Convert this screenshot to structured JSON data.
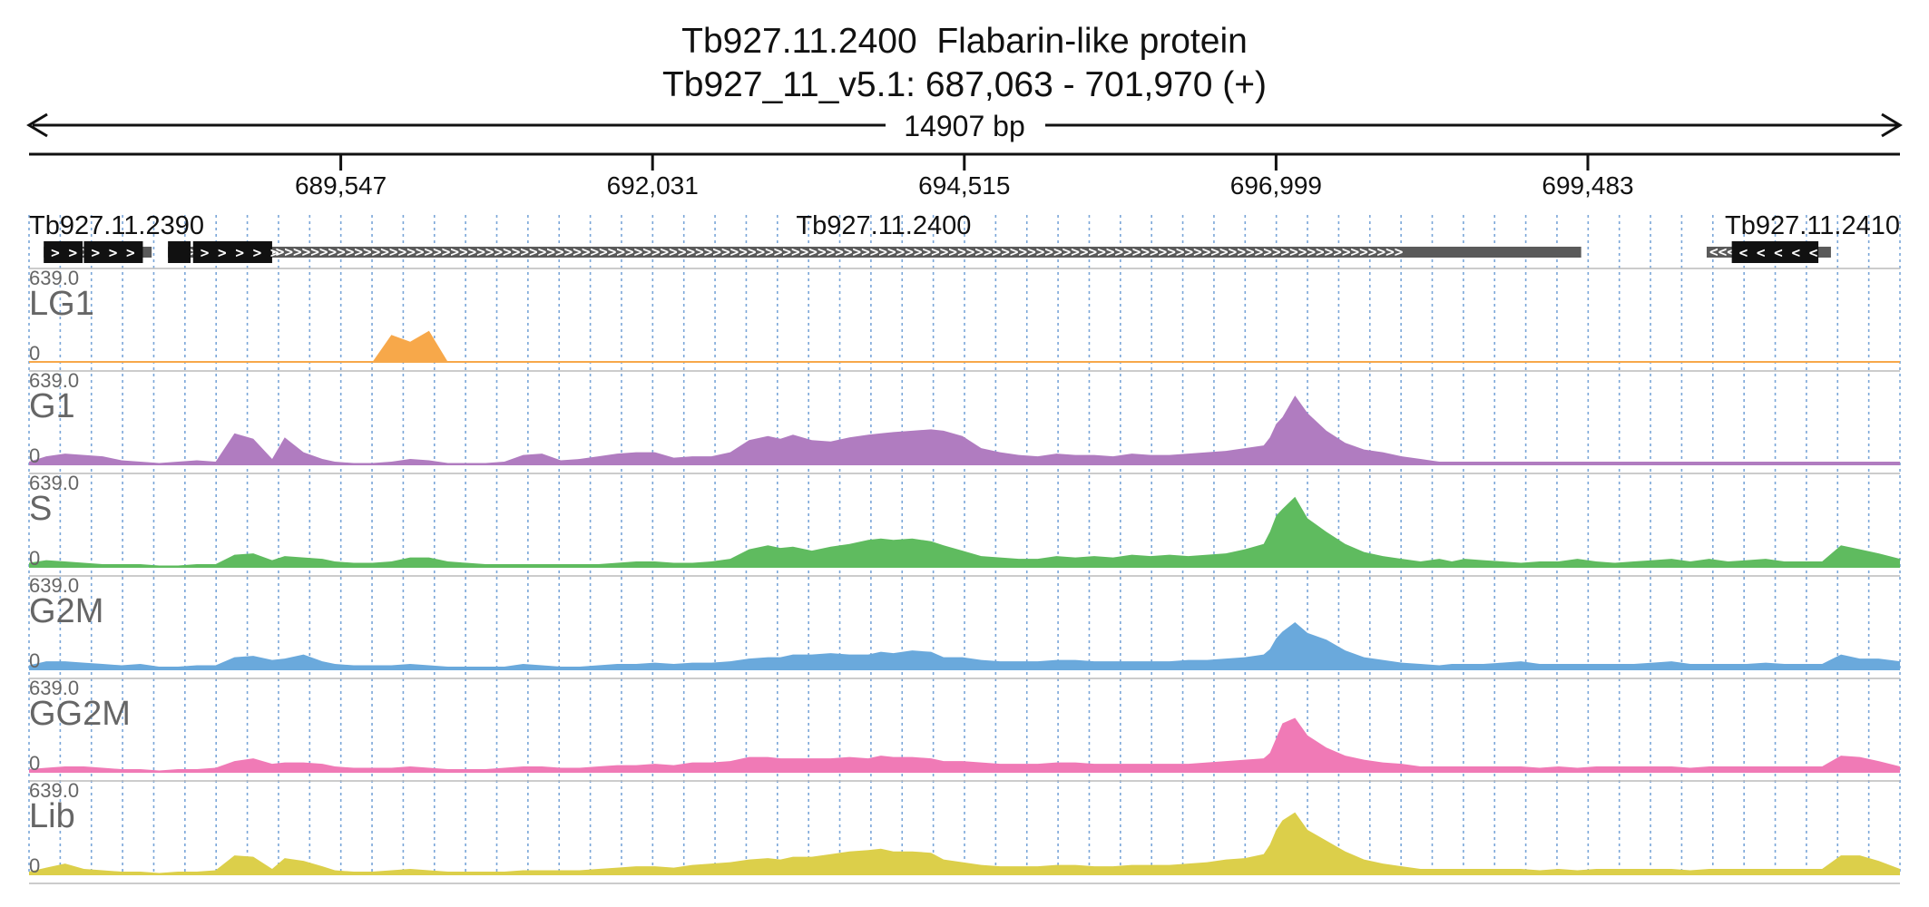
{
  "header": {
    "title_line1": "Tb927.11.2400  Flabarin-like protein",
    "title_line2": "Tb927_11_v5.1: 687,063 - 701,970 (+)",
    "span_label": "14907 bp"
  },
  "colors": {
    "LG1": "#f7a84a",
    "G1": "#b07cc0",
    "S": "#5fbb5f",
    "G2M": "#6aa9dc",
    "GG2M": "#f07ab6",
    "Lib": "#dccf4a",
    "gridline": "#7aa6d8",
    "gene_body": "#5a5a5a",
    "cds": "#111111"
  },
  "chart_data": {
    "type": "area",
    "region": {
      "chromosome": "Tb927_11_v5.1",
      "start": 687063,
      "end": 701970,
      "strand": "+"
    },
    "xlim": [
      687063,
      701970
    ],
    "ticks": [
      {
        "pos": 689547,
        "label": "689,547"
      },
      {
        "pos": 692031,
        "label": "692,031"
      },
      {
        "pos": 694515,
        "label": "694,515"
      },
      {
        "pos": 696999,
        "label": "696,999"
      },
      {
        "pos": 699483,
        "label": "699,483"
      }
    ],
    "genes": [
      {
        "name": "Tb927.11.2390",
        "strand": "+",
        "body": [
          687180,
          688040
        ],
        "exons": [
          [
            687180,
            687490
          ],
          [
            687500,
            687970
          ]
        ]
      },
      {
        "name": "Tb927.11.2400",
        "strand": "+",
        "body": [
          688170,
          699430
        ],
        "exons": [
          [
            688170,
            688350
          ],
          [
            688370,
            689000
          ]
        ]
      },
      {
        "name": "Tb927.11.2410",
        "strand": "-",
        "body": [
          700430,
          701420
        ],
        "exons": [
          [
            700630,
            701320
          ]
        ]
      }
    ],
    "ylim": [
      0,
      639.0
    ],
    "scale_label": "639.0",
    "zero_label": "0",
    "x_positions": [
      687063,
      687200,
      687350,
      687500,
      687650,
      687800,
      687950,
      688100,
      688250,
      688400,
      688550,
      688700,
      688850,
      689000,
      689100,
      689250,
      689400,
      689500,
      689650,
      689800,
      689950,
      690100,
      690250,
      690400,
      690550,
      690700,
      690850,
      691000,
      691150,
      691300,
      691450,
      691600,
      691750,
      691900,
      692050,
      692200,
      692350,
      692500,
      692650,
      692800,
      692950,
      693050,
      693150,
      693300,
      693450,
      693600,
      693750,
      693850,
      693950,
      694100,
      694250,
      694350,
      694500,
      694650,
      694800,
      694950,
      695100,
      695250,
      695400,
      695550,
      695700,
      695850,
      696000,
      696150,
      696300,
      696450,
      696600,
      696750,
      696900,
      696950,
      697000,
      697050,
      697150,
      697250,
      697400,
      697550,
      697700,
      697850,
      698000,
      698150,
      698300,
      698400,
      698500,
      698650,
      698800,
      698950,
      699100,
      699250,
      699400,
      699550,
      699700,
      699850,
      700000,
      700150,
      700300,
      700450,
      700600,
      700750,
      700900,
      701050,
      701200,
      701350,
      701500,
      701650,
      701800,
      701970
    ],
    "series": [
      {
        "name": "LG1",
        "values": [
          0,
          0,
          0,
          0,
          0,
          0,
          0,
          0,
          0,
          0,
          0,
          0,
          0,
          0,
          0,
          0,
          0,
          0,
          0,
          0,
          200,
          150,
          230,
          0,
          0,
          0,
          0,
          0,
          0,
          0,
          0,
          0,
          0,
          0,
          0,
          0,
          0,
          0,
          0,
          0,
          0,
          0,
          0,
          0,
          0,
          0,
          0,
          0,
          0,
          0,
          0,
          0,
          0,
          0,
          0,
          0,
          0,
          0,
          0,
          0,
          0,
          0,
          0,
          0,
          0,
          0,
          0,
          0,
          0,
          0,
          0,
          0,
          0,
          0,
          0,
          0,
          0,
          0,
          0,
          0,
          0,
          0,
          0,
          0,
          0,
          0,
          0,
          0,
          0,
          0,
          0,
          0,
          0,
          0,
          0,
          0,
          0,
          0,
          0,
          0,
          0,
          0,
          0,
          0,
          0,
          0
        ]
      },
      {
        "name": "G1",
        "values": [
          20,
          60,
          80,
          70,
          60,
          30,
          20,
          10,
          20,
          30,
          20,
          230,
          190,
          40,
          200,
          90,
          40,
          20,
          10,
          10,
          20,
          40,
          30,
          10,
          10,
          10,
          20,
          70,
          80,
          30,
          40,
          60,
          80,
          90,
          90,
          50,
          60,
          60,
          90,
          180,
          210,
          190,
          220,
          180,
          170,
          200,
          220,
          230,
          240,
          250,
          260,
          250,
          210,
          120,
          90,
          70,
          60,
          80,
          70,
          70,
          60,
          80,
          70,
          70,
          80,
          90,
          100,
          120,
          140,
          200,
          300,
          350,
          510,
          380,
          250,
          160,
          110,
          90,
          60,
          40,
          20,
          20,
          20,
          20,
          20,
          20,
          20,
          20,
          20,
          20,
          20,
          20,
          20,
          20,
          20,
          20,
          20,
          20,
          20,
          20,
          20,
          20,
          20,
          20,
          20,
          20
        ]
      },
      {
        "name": "S",
        "values": [
          30,
          50,
          40,
          30,
          20,
          20,
          20,
          10,
          10,
          20,
          20,
          90,
          100,
          50,
          80,
          70,
          60,
          40,
          30,
          30,
          40,
          70,
          70,
          40,
          30,
          20,
          20,
          20,
          20,
          20,
          20,
          20,
          30,
          40,
          40,
          30,
          30,
          40,
          60,
          130,
          160,
          140,
          150,
          120,
          150,
          170,
          200,
          210,
          200,
          210,
          190,
          160,
          120,
          80,
          70,
          60,
          60,
          80,
          70,
          80,
          70,
          90,
          80,
          90,
          80,
          90,
          100,
          130,
          170,
          260,
          380,
          430,
          520,
          360,
          260,
          170,
          110,
          80,
          60,
          40,
          60,
          40,
          60,
          50,
          40,
          30,
          40,
          40,
          60,
          40,
          30,
          40,
          50,
          60,
          40,
          60,
          40,
          50,
          60,
          40,
          40,
          40,
          160,
          130,
          100,
          60
        ]
      },
      {
        "name": "G2M",
        "values": [
          30,
          60,
          60,
          50,
          40,
          30,
          40,
          20,
          20,
          30,
          30,
          90,
          100,
          70,
          80,
          110,
          60,
          40,
          30,
          30,
          30,
          40,
          30,
          20,
          20,
          20,
          20,
          40,
          30,
          20,
          20,
          30,
          40,
          40,
          50,
          40,
          50,
          50,
          60,
          80,
          90,
          90,
          110,
          110,
          120,
          110,
          110,
          130,
          120,
          140,
          130,
          90,
          90,
          70,
          60,
          60,
          60,
          70,
          70,
          60,
          60,
          60,
          60,
          60,
          70,
          70,
          80,
          90,
          110,
          150,
          230,
          280,
          350,
          270,
          220,
          140,
          90,
          70,
          50,
          40,
          30,
          40,
          40,
          40,
          50,
          60,
          40,
          40,
          40,
          40,
          40,
          40,
          50,
          60,
          40,
          40,
          40,
          40,
          50,
          40,
          40,
          40,
          110,
          80,
          80,
          60
        ]
      },
      {
        "name": "GG2M",
        "values": [
          20,
          30,
          40,
          40,
          30,
          20,
          20,
          10,
          20,
          20,
          30,
          80,
          100,
          60,
          70,
          70,
          60,
          40,
          30,
          30,
          30,
          40,
          30,
          20,
          20,
          20,
          30,
          40,
          40,
          30,
          30,
          40,
          50,
          50,
          60,
          50,
          70,
          70,
          80,
          110,
          110,
          100,
          100,
          100,
          100,
          110,
          100,
          120,
          110,
          110,
          100,
          80,
          80,
          70,
          60,
          60,
          60,
          70,
          70,
          60,
          60,
          60,
          60,
          60,
          60,
          70,
          80,
          90,
          100,
          140,
          250,
          360,
          400,
          270,
          180,
          120,
          90,
          70,
          60,
          40,
          40,
          40,
          40,
          40,
          40,
          40,
          30,
          40,
          30,
          40,
          40,
          40,
          40,
          40,
          30,
          40,
          40,
          40,
          40,
          40,
          40,
          40,
          120,
          110,
          80,
          40
        ]
      },
      {
        "name": "Lib",
        "values": [
          20,
          50,
          80,
          40,
          30,
          20,
          20,
          10,
          20,
          20,
          30,
          140,
          130,
          40,
          120,
          100,
          60,
          30,
          20,
          20,
          30,
          40,
          30,
          20,
          20,
          20,
          20,
          30,
          30,
          30,
          30,
          40,
          50,
          60,
          60,
          50,
          70,
          80,
          90,
          110,
          120,
          110,
          130,
          130,
          150,
          170,
          180,
          190,
          170,
          170,
          160,
          110,
          90,
          70,
          60,
          60,
          60,
          70,
          70,
          60,
          60,
          70,
          70,
          70,
          80,
          90,
          110,
          120,
          150,
          220,
          330,
          400,
          460,
          330,
          250,
          170,
          110,
          80,
          60,
          40,
          40,
          40,
          40,
          40,
          40,
          40,
          30,
          40,
          30,
          40,
          40,
          40,
          40,
          40,
          30,
          40,
          40,
          40,
          40,
          40,
          40,
          40,
          140,
          140,
          100,
          40
        ]
      }
    ]
  }
}
